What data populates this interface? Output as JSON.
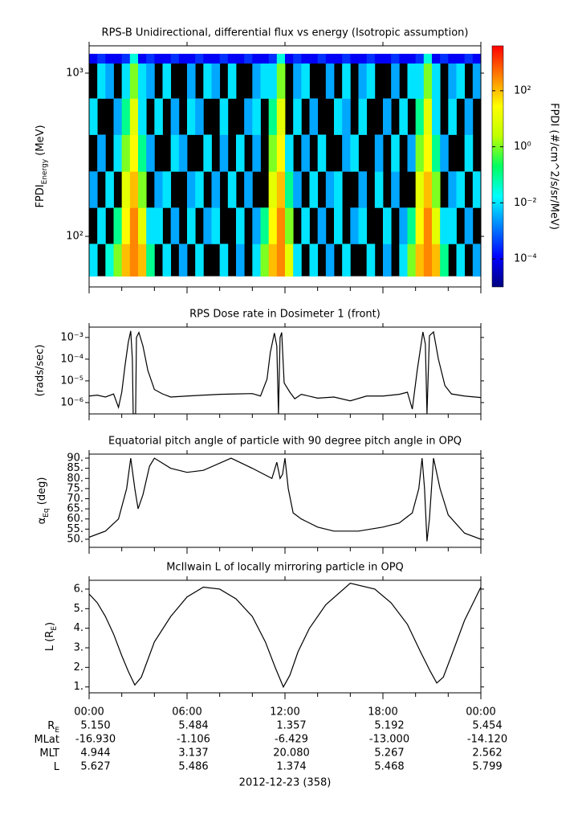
{
  "chart_data": [
    {
      "type": "heatmap",
      "title": "RPS-B  Unidirectional, differential flux vs energy (Isotropic assumption)",
      "ylabel": {
        "text": "FPDI",
        "sub": "Energy",
        "after": " (MeV)"
      },
      "xlim": [
        0,
        24
      ],
      "ylim": [
        49,
        1470
      ],
      "log_y": true,
      "yticks": [
        {
          "value": 100,
          "label": "10²"
        },
        {
          "value": 1000,
          "label": "10³"
        }
      ],
      "xbins": [
        0,
        0.5,
        1,
        1.5,
        2,
        2.5,
        3,
        3.5,
        4,
        4.5,
        5,
        5.5,
        6,
        6.5,
        7,
        7.5,
        8,
        8.5,
        9,
        9.5,
        10,
        10.5,
        11,
        11.5,
        12,
        12.5,
        13,
        13.5,
        14,
        14.5,
        15,
        15.5,
        16,
        16.5,
        17,
        17.5,
        18,
        18.5,
        19,
        19.5,
        20,
        20.5,
        21,
        21.5,
        22,
        22.5,
        23,
        23.5,
        24
      ],
      "ybins": [
        57,
        90,
        150,
        250,
        420,
        700,
        1150,
        1313
      ],
      "values": [
        [
          0.01,
          null,
          0.03,
          1.0,
          100.0,
          300.0,
          100.0,
          0.1,
          null,
          0.01,
          null,
          0.003,
          null,
          0.01,
          null,
          null,
          0.01,
          null,
          0.003,
          null,
          0.01,
          1.0,
          100.0,
          300.0,
          10.0,
          0.01,
          null,
          0.01,
          null,
          0.003,
          null,
          0.01,
          null,
          null,
          0.01,
          null,
          0.003,
          null,
          0.01,
          1.0,
          100.0,
          300.0,
          100.0,
          0.1,
          null,
          0.01,
          null,
          0.003
        ],
        [
          null,
          0.01,
          null,
          0.1,
          30.0,
          300.0,
          10.0,
          0.01,
          0.01,
          null,
          0.003,
          null,
          0.01,
          null,
          0.003,
          0.01,
          null,
          null,
          0.01,
          null,
          0.003,
          0.1,
          30.0,
          300.0,
          1.0,
          null,
          0.01,
          null,
          0.003,
          null,
          0.01,
          null,
          0.003,
          0.01,
          null,
          null,
          0.01,
          null,
          0.003,
          0.1,
          30.0,
          300.0,
          10.0,
          0.01,
          0.01,
          null,
          0.003,
          null
        ],
        [
          0.003,
          null,
          0.01,
          null,
          10.0,
          100.0,
          1.0,
          null,
          0.003,
          0.01,
          null,
          null,
          0.003,
          0.01,
          null,
          0.003,
          null,
          0.01,
          null,
          0.003,
          null,
          null,
          10.0,
          100.0,
          0.1,
          0.003,
          null,
          0.01,
          null,
          0.003,
          0.01,
          null,
          null,
          0.003,
          null,
          0.01,
          null,
          0.003,
          null,
          null,
          10.0,
          100.0,
          1.0,
          null,
          0.003,
          0.01,
          null,
          0.01
        ],
        [
          null,
          0.003,
          null,
          0.01,
          1.0,
          30.0,
          0.1,
          0.003,
          null,
          null,
          0.01,
          0.003,
          null,
          null,
          0.01,
          null,
          0.003,
          null,
          0.01,
          null,
          0.003,
          null,
          1.0,
          30.0,
          0.01,
          null,
          0.003,
          null,
          0.01,
          null,
          null,
          0.003,
          0.01,
          null,
          null,
          0.003,
          null,
          0.01,
          null,
          0.003,
          1.0,
          30.0,
          0.1,
          0.003,
          null,
          null,
          0.01,
          null
        ],
        [
          0.01,
          null,
          null,
          0.003,
          0.1,
          10.0,
          0.01,
          null,
          0.01,
          null,
          0.003,
          null,
          0.01,
          0.003,
          null,
          null,
          0.01,
          null,
          null,
          0.003,
          0.01,
          null,
          0.1,
          10.0,
          null,
          0.01,
          null,
          0.003,
          null,
          null,
          0.01,
          0.003,
          null,
          0.01,
          null,
          null,
          0.003,
          null,
          0.01,
          null,
          0.1,
          10.0,
          0.01,
          null,
          0.01,
          null,
          0.003,
          null
        ],
        [
          null,
          0.01,
          0.003,
          null,
          0.01,
          1.0,
          0.01,
          0.003,
          null,
          0.01,
          null,
          null,
          0.003,
          null,
          0.01,
          0.003,
          null,
          0.01,
          null,
          null,
          0.003,
          0.01,
          0.01,
          1.0,
          null,
          0.003,
          0.01,
          null,
          null,
          0.003,
          null,
          0.01,
          null,
          0.003,
          0.01,
          null,
          null,
          0.003,
          null,
          0.01,
          0.01,
          1.0,
          0.01,
          null,
          0.003,
          0.01,
          null,
          0.003
        ],
        [
          0.0001,
          0.0003,
          0.0001,
          0.0001,
          0.0003,
          0.03,
          0.0001,
          0.0003,
          0.0001,
          0.0001,
          0.0003,
          0.0001,
          0.0001,
          0.0003,
          0.0001,
          0.0001,
          0.0003,
          0.0001,
          0.0001,
          0.0003,
          0.0001,
          0.0001,
          0.0003,
          0.03,
          0.0001,
          0.0003,
          0.0001,
          0.0001,
          0.0003,
          0.0001,
          0.0001,
          0.0003,
          0.0001,
          0.0001,
          0.0003,
          0.0001,
          0.0001,
          0.0003,
          0.0001,
          0.0001,
          0.0003,
          0.03,
          0.0001,
          0.0003,
          0.0001,
          0.0001,
          0.0003,
          0.0001
        ]
      ],
      "missing_color": "#000000",
      "colormap": [
        "#000080",
        "#0000ff",
        "#0080ff",
        "#00ffff",
        "#00ff60",
        "#c0ff00",
        "#ffff00",
        "#ff8000",
        "#ff0000"
      ],
      "colorbar": {
        "label": "FPDI (#/cm^2/s/sr/MeV)",
        "lim": [
          1e-05,
          4000
        ],
        "log": true,
        "ticks": [
          {
            "value": 0.0001,
            "label": "10⁻⁴"
          },
          {
            "value": 0.01,
            "label": "10⁻²"
          },
          {
            "value": 1,
            "label": "10⁰"
          },
          {
            "value": 100,
            "label": "10²"
          }
        ]
      }
    },
    {
      "type": "line",
      "title": "RPS  Dose rate in Dosimeter 1 (front)",
      "ylabel": "(rads/sec)",
      "xlim": [
        0,
        24
      ],
      "ylim": [
        3e-07,
        0.003
      ],
      "log_y": true,
      "color": "#000000",
      "yticks": [
        {
          "value": 1e-06,
          "label": "10⁻⁶"
        },
        {
          "value": 1e-05,
          "label": "10⁻⁵"
        },
        {
          "value": 0.0001,
          "label": "10⁻⁴"
        },
        {
          "value": 0.001,
          "label": "10⁻³"
        }
      ],
      "x": [
        0,
        0.5,
        1,
        1.5,
        1.8,
        2.0,
        2.2,
        2.4,
        2.55,
        2.65,
        2.7,
        2.85,
        2.9,
        3.05,
        3.3,
        3.6,
        4,
        4.5,
        5,
        6,
        7,
        8,
        9,
        10,
        10.5,
        10.9,
        11.1,
        11.35,
        11.5,
        11.6,
        11.7,
        11.8,
        11.95,
        12.3,
        12.6,
        13,
        14,
        15,
        16,
        17,
        18,
        19,
        19.5,
        19.8,
        20.1,
        20.45,
        20.6,
        20.7,
        20.85,
        21.1,
        21.4,
        21.8,
        22.2,
        23,
        24
      ],
      "values": [
        2e-06,
        2.2e-06,
        1.8e-06,
        2.5e-06,
        6e-07,
        3e-06,
        5e-05,
        0.0006,
        0.002,
        0.0001,
        3e-07,
        3e-07,
        0.001,
        0.0017,
        0.0004,
        3e-05,
        4e-06,
        2.5e-06,
        1.8e-06,
        2e-06,
        2.2e-06,
        2.4e-06,
        2.5e-06,
        2.6e-06,
        2e-06,
        1.2e-05,
        0.0002,
        0.0016,
        0.0004,
        3e-07,
        0.001,
        0.0017,
        8e-06,
        3e-06,
        1.5e-06,
        2.4e-06,
        1.6e-06,
        1.8e-06,
        1.2e-06,
        2e-06,
        2e-06,
        2.4e-06,
        3e-06,
        5e-07,
        3e-05,
        0.0018,
        0.0005,
        3e-07,
        0.0012,
        0.0018,
        0.0001,
        6e-06,
        2.5e-06,
        2e-06,
        1.7e-06
      ]
    },
    {
      "type": "line",
      "title": "Equatorial pitch angle of particle with 90 degree pitch angle in OPQ",
      "ylabel": {
        "text": "α",
        "sub": "Eq",
        "after": " (deg)"
      },
      "xlim": [
        0,
        24
      ],
      "ylim": [
        46,
        92
      ],
      "color": "#000000",
      "yticks": [
        {
          "value": 50,
          "label": "50."
        },
        {
          "value": 55,
          "label": "55."
        },
        {
          "value": 60,
          "label": "60."
        },
        {
          "value": 65,
          "label": "65."
        },
        {
          "value": 70,
          "label": "70."
        },
        {
          "value": 75,
          "label": "75."
        },
        {
          "value": 80,
          "label": "80."
        },
        {
          "value": 85,
          "label": "85."
        },
        {
          "value": 90,
          "label": "90."
        }
      ],
      "x": [
        0,
        1,
        1.8,
        2.3,
        2.55,
        2.8,
        3.0,
        3.3,
        3.7,
        4.0,
        5,
        6,
        7,
        8.7,
        10,
        11.2,
        11.5,
        11.7,
        11.85,
        12.0,
        12.2,
        12.5,
        13,
        14,
        15,
        16.5,
        18,
        19,
        19.8,
        20.2,
        20.4,
        20.55,
        20.7,
        20.85,
        21.1,
        21.5,
        22,
        23,
        24
      ],
      "values": [
        51,
        54,
        60,
        75,
        90,
        75,
        65,
        72,
        86,
        90,
        85,
        83,
        84,
        90,
        85,
        80,
        88,
        80,
        82,
        90,
        75,
        63,
        60,
        56,
        54,
        54,
        56,
        58,
        63,
        75,
        90,
        75,
        49,
        60,
        90,
        75,
        62,
        53,
        50
      ]
    },
    {
      "type": "line",
      "title": "McIlwain L of locally mirroring particle in OPQ",
      "ylabel": {
        "text": "L (R",
        "sub": "E",
        "after": ")"
      },
      "xlim": [
        0,
        24
      ],
      "ylim": [
        0.7,
        6.45
      ],
      "color": "#000000",
      "yticks": [
        {
          "value": 1,
          "label": "1."
        },
        {
          "value": 2,
          "label": "2."
        },
        {
          "value": 3,
          "label": "3."
        },
        {
          "value": 4,
          "label": "4."
        },
        {
          "value": 5,
          "label": "5."
        },
        {
          "value": 6,
          "label": "6."
        }
      ],
      "x": [
        0,
        0.5,
        1,
        1.5,
        2,
        2.4,
        2.8,
        3.2,
        3.6,
        4,
        5,
        6,
        7,
        8,
        9,
        10,
        10.8,
        11.4,
        11.9,
        12.3,
        12.8,
        13.5,
        14.5,
        16,
        17.5,
        18.5,
        19.5,
        20.3,
        20.9,
        21.3,
        21.7,
        22.2,
        23,
        24
      ],
      "values": [
        5.75,
        5.3,
        4.6,
        3.7,
        2.6,
        1.8,
        1.1,
        1.5,
        2.4,
        3.3,
        4.6,
        5.6,
        6.1,
        6.0,
        5.5,
        4.6,
        3.3,
        2.0,
        1.0,
        1.6,
        2.8,
        4.0,
        5.2,
        6.3,
        6.0,
        5.3,
        4.2,
        2.8,
        1.8,
        1.2,
        1.5,
        2.6,
        4.4,
        6.1
      ],
      "xticks": [
        {
          "value": 0,
          "label": "00:00"
        },
        {
          "value": 6,
          "label": "06:00"
        },
        {
          "value": 12,
          "label": "12:00"
        },
        {
          "value": 18,
          "label": "18:00"
        },
        {
          "value": 24,
          "label": "00:00"
        }
      ],
      "xminorticks": [
        2,
        4,
        8,
        10,
        14,
        16,
        20,
        22
      ],
      "xlabel": "2012-12-23 (358)"
    }
  ],
  "ephemeris": {
    "rows": [
      {
        "label": "R",
        "sub": "E",
        "values": [
          "5.150",
          "5.484",
          "1.357",
          "5.192",
          "5.454"
        ]
      },
      {
        "label": "MLat",
        "values": [
          "-16.930",
          "-1.106",
          "-6.429",
          "-13.000",
          "-14.120"
        ]
      },
      {
        "label": "MLT",
        "values": [
          "4.944",
          "3.137",
          "20.080",
          "5.267",
          "2.562"
        ]
      },
      {
        "label": "L",
        "values": [
          "5.627",
          "5.486",
          "1.374",
          "5.468",
          "5.799"
        ]
      }
    ]
  }
}
